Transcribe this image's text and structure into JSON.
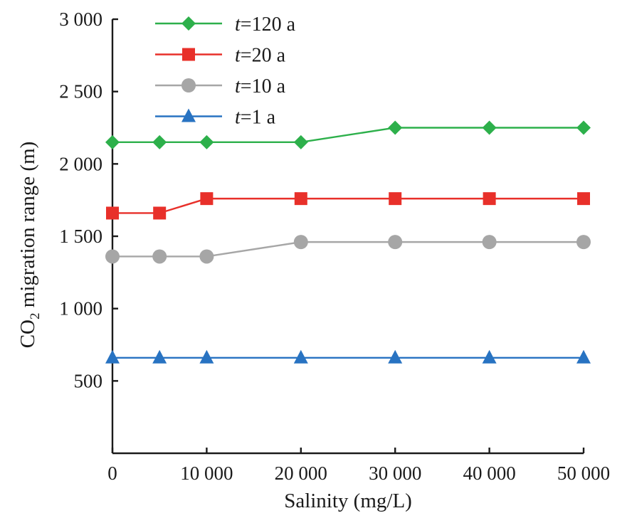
{
  "chart_data": {
    "type": "line",
    "xlabel": "Salinity (mg/L)",
    "ylabel": "CO2 migration range (m)",
    "ylabel_parts": {
      "main": "CO",
      "sub": "2",
      "rest": " migration range (m)"
    },
    "xlim": [
      0,
      50000
    ],
    "ylim": [
      0,
      3000
    ],
    "x_ticks": [
      0,
      10000,
      20000,
      30000,
      40000,
      50000
    ],
    "x_tick_labels": [
      "0",
      "10 000",
      "20 000",
      "30 000",
      "40 000",
      "50 000"
    ],
    "y_ticks": [
      500,
      1000,
      1500,
      2000,
      2500,
      3000
    ],
    "y_tick_labels": [
      "500",
      "1 000",
      "1 500",
      "2 000",
      "2 500",
      "3 000"
    ],
    "x": [
      0,
      5000,
      10000,
      20000,
      30000,
      40000,
      50000
    ],
    "grid": false,
    "legend_position": "top-left",
    "series": [
      {
        "name": "t=120 a",
        "name_italic": "t",
        "name_rest": "=120 a",
        "marker": "diamond",
        "color": "#2db04b",
        "values": [
          2150,
          2150,
          2150,
          2150,
          2250,
          2250,
          2250
        ]
      },
      {
        "name": "t=20 a",
        "name_italic": "t",
        "name_rest": "=20 a",
        "marker": "square",
        "color": "#e8302a",
        "values": [
          1660,
          1660,
          1760,
          1760,
          1760,
          1760,
          1760
        ]
      },
      {
        "name": "t=10 a",
        "name_italic": "t",
        "name_rest": "=10 a",
        "marker": "circle",
        "color": "#a6a6a6",
        "values": [
          1360,
          1360,
          1360,
          1460,
          1460,
          1460,
          1460
        ]
      },
      {
        "name": "t=1 a",
        "name_italic": "t",
        "name_rest": "=1 a",
        "marker": "triangle",
        "color": "#2873c2",
        "values": [
          660,
          660,
          660,
          660,
          660,
          660,
          660
        ]
      }
    ]
  }
}
